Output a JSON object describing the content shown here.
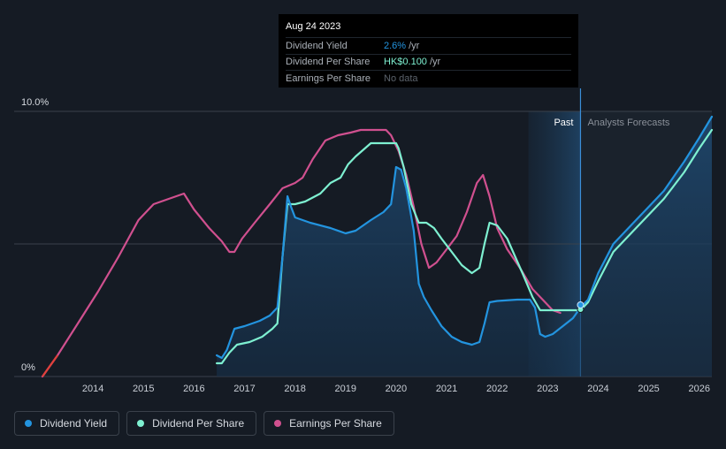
{
  "tooltip": {
    "date": "Aug 24 2023",
    "rows": [
      {
        "label": "Dividend Yield",
        "value": "2.6%",
        "unit": "/yr",
        "color": "#2394df"
      },
      {
        "label": "Dividend Per Share",
        "value": "HK$0.100",
        "unit": "/yr",
        "color": "#7ef0d1"
      },
      {
        "label": "Earnings Per Share",
        "value": "No data",
        "unit": "",
        "color": "#5c636c"
      }
    ]
  },
  "legend": [
    {
      "label": "Dividend Yield",
      "color": "#2394df"
    },
    {
      "label": "Dividend Per Share",
      "color": "#7ef0d1"
    },
    {
      "label": "Earnings Per Share",
      "color": "#d0508f"
    }
  ],
  "chart_data": {
    "type": "line",
    "title": "",
    "xlabel": "",
    "ylabel": "",
    "x_range": [
      2013.0,
      2026.25
    ],
    "ylim": [
      0,
      10
    ],
    "y_tick_labels": [
      {
        "value": 10,
        "label": "10.0%"
      },
      {
        "value": 0,
        "label": "0%"
      }
    ],
    "x_ticks": [
      2014,
      2015,
      2016,
      2017,
      2018,
      2019,
      2020,
      2021,
      2022,
      2023,
      2024,
      2025,
      2026
    ],
    "past_label": "Past",
    "forecast_label": "Analysts Forecasts",
    "forecast_start": 2023.65,
    "past_band_start": 2022.62,
    "highlight": {
      "x": 2023.65,
      "y": 2.6
    },
    "series": [
      {
        "name": "Dividend Yield",
        "color": "#2394df",
        "filled": true,
        "points": [
          [
            2016.45,
            0.8
          ],
          [
            2016.55,
            0.7
          ],
          [
            2016.65,
            1.0
          ],
          [
            2016.8,
            1.8
          ],
          [
            2017.0,
            1.9
          ],
          [
            2017.3,
            2.1
          ],
          [
            2017.5,
            2.3
          ],
          [
            2017.65,
            2.6
          ],
          [
            2017.75,
            4.5
          ],
          [
            2017.85,
            6.8
          ],
          [
            2017.92,
            6.4
          ],
          [
            2018.0,
            6.0
          ],
          [
            2018.3,
            5.8
          ],
          [
            2018.7,
            5.6
          ],
          [
            2019.0,
            5.4
          ],
          [
            2019.2,
            5.5
          ],
          [
            2019.5,
            5.9
          ],
          [
            2019.75,
            6.2
          ],
          [
            2019.9,
            6.5
          ],
          [
            2019.95,
            7.2
          ],
          [
            2020.0,
            7.9
          ],
          [
            2020.1,
            7.8
          ],
          [
            2020.2,
            7.1
          ],
          [
            2020.35,
            5.5
          ],
          [
            2020.45,
            3.5
          ],
          [
            2020.55,
            3.0
          ],
          [
            2020.7,
            2.5
          ],
          [
            2020.9,
            1.9
          ],
          [
            2021.1,
            1.5
          ],
          [
            2021.3,
            1.3
          ],
          [
            2021.5,
            1.2
          ],
          [
            2021.65,
            1.3
          ],
          [
            2021.75,
            2.0
          ],
          [
            2021.85,
            2.8
          ],
          [
            2022.0,
            2.85
          ],
          [
            2022.4,
            2.9
          ],
          [
            2022.65,
            2.9
          ],
          [
            2022.75,
            2.6
          ],
          [
            2022.85,
            1.6
          ],
          [
            2022.95,
            1.5
          ],
          [
            2023.1,
            1.6
          ],
          [
            2023.3,
            1.9
          ],
          [
            2023.5,
            2.2
          ],
          [
            2023.65,
            2.6
          ],
          [
            2023.8,
            2.9
          ],
          [
            2024.0,
            3.9
          ],
          [
            2024.3,
            5.0
          ],
          [
            2024.7,
            5.8
          ],
          [
            2025.0,
            6.4
          ],
          [
            2025.3,
            7.0
          ],
          [
            2025.7,
            8.1
          ],
          [
            2026.0,
            9.0
          ],
          [
            2026.25,
            9.8
          ]
        ]
      },
      {
        "name": "Dividend Per Share",
        "color": "#7ef0d1",
        "filled": false,
        "points": [
          [
            2016.45,
            0.5
          ],
          [
            2016.55,
            0.5
          ],
          [
            2016.7,
            0.9
          ],
          [
            2016.85,
            1.2
          ],
          [
            2017.1,
            1.3
          ],
          [
            2017.35,
            1.5
          ],
          [
            2017.55,
            1.8
          ],
          [
            2017.65,
            2.0
          ],
          [
            2017.75,
            4.5
          ],
          [
            2017.85,
            6.5
          ],
          [
            2018.0,
            6.5
          ],
          [
            2018.2,
            6.6
          ],
          [
            2018.5,
            6.9
          ],
          [
            2018.7,
            7.3
          ],
          [
            2018.9,
            7.5
          ],
          [
            2019.05,
            8.0
          ],
          [
            2019.2,
            8.3
          ],
          [
            2019.5,
            8.8
          ],
          [
            2019.7,
            8.8
          ],
          [
            2019.9,
            8.8
          ],
          [
            2020.0,
            8.8
          ],
          [
            2020.05,
            8.6
          ],
          [
            2020.15,
            7.9
          ],
          [
            2020.3,
            6.5
          ],
          [
            2020.45,
            5.8
          ],
          [
            2020.6,
            5.8
          ],
          [
            2020.75,
            5.6
          ],
          [
            2020.9,
            5.2
          ],
          [
            2021.1,
            4.7
          ],
          [
            2021.3,
            4.2
          ],
          [
            2021.5,
            3.9
          ],
          [
            2021.65,
            4.1
          ],
          [
            2021.75,
            5.0
          ],
          [
            2021.85,
            5.8
          ],
          [
            2022.0,
            5.7
          ],
          [
            2022.2,
            5.2
          ],
          [
            2022.5,
            3.9
          ],
          [
            2022.7,
            3.0
          ],
          [
            2022.85,
            2.5
          ],
          [
            2023.0,
            2.5
          ],
          [
            2023.3,
            2.5
          ],
          [
            2023.5,
            2.5
          ],
          [
            2023.65,
            2.5
          ],
          [
            2023.8,
            2.8
          ],
          [
            2024.0,
            3.6
          ],
          [
            2024.3,
            4.7
          ],
          [
            2024.7,
            5.5
          ],
          [
            2025.0,
            6.1
          ],
          [
            2025.3,
            6.7
          ],
          [
            2025.7,
            7.7
          ],
          [
            2026.0,
            8.6
          ],
          [
            2026.25,
            9.3
          ]
        ]
      },
      {
        "name": "Earnings Per Share",
        "color": "#d0508f",
        "filled": false,
        "points": [
          [
            2013.0,
            0.0
          ],
          [
            2013.3,
            0.8
          ],
          [
            2013.7,
            2.0
          ],
          [
            2014.1,
            3.2
          ],
          [
            2014.5,
            4.5
          ],
          [
            2014.9,
            5.9
          ],
          [
            2015.2,
            6.5
          ],
          [
            2015.5,
            6.7
          ],
          [
            2015.8,
            6.9
          ],
          [
            2016.0,
            6.3
          ],
          [
            2016.3,
            5.6
          ],
          [
            2016.55,
            5.1
          ],
          [
            2016.7,
            4.7
          ],
          [
            2016.8,
            4.7
          ],
          [
            2016.95,
            5.2
          ],
          [
            2017.2,
            5.8
          ],
          [
            2017.5,
            6.5
          ],
          [
            2017.75,
            7.1
          ],
          [
            2018.0,
            7.3
          ],
          [
            2018.15,
            7.5
          ],
          [
            2018.35,
            8.2
          ],
          [
            2018.6,
            8.9
          ],
          [
            2018.85,
            9.1
          ],
          [
            2019.1,
            9.2
          ],
          [
            2019.3,
            9.3
          ],
          [
            2019.6,
            9.3
          ],
          [
            2019.8,
            9.3
          ],
          [
            2019.9,
            9.1
          ],
          [
            2020.05,
            8.5
          ],
          [
            2020.2,
            7.6
          ],
          [
            2020.35,
            6.4
          ],
          [
            2020.5,
            5.0
          ],
          [
            2020.65,
            4.1
          ],
          [
            2020.8,
            4.3
          ],
          [
            2021.0,
            4.8
          ],
          [
            2021.2,
            5.3
          ],
          [
            2021.4,
            6.2
          ],
          [
            2021.6,
            7.3
          ],
          [
            2021.72,
            7.6
          ],
          [
            2021.85,
            6.8
          ],
          [
            2022.0,
            5.6
          ],
          [
            2022.2,
            4.8
          ],
          [
            2022.45,
            4.1
          ],
          [
            2022.7,
            3.3
          ],
          [
            2022.95,
            2.8
          ],
          [
            2023.1,
            2.5
          ],
          [
            2023.25,
            2.4
          ]
        ]
      }
    ]
  }
}
